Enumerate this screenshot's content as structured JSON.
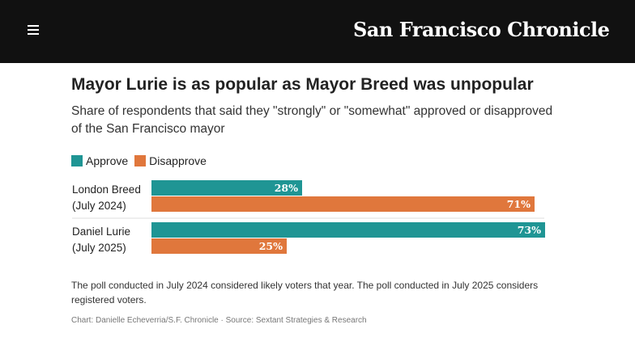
{
  "header": {
    "logo_text": "San Francisco Chronicle",
    "menu_icon": "hamburger-menu-icon"
  },
  "chart_data": {
    "type": "bar",
    "orientation": "horizontal",
    "title": "Mayor Lurie is as popular as Mayor Breed was unpopular",
    "subtitle": "Share of respondents that said they \"strongly\" or \"somewhat\" approved or disapproved of the San Francisco mayor",
    "categories": [
      [
        "London Breed",
        "(July 2024)"
      ],
      [
        "Daniel Lurie",
        "(July 2025)"
      ]
    ],
    "series": [
      {
        "name": "Approve",
        "color": "#1f9594",
        "values": [
          28,
          73
        ]
      },
      {
        "name": "Disapprove",
        "color": "#e0773c",
        "values": [
          71,
          25
        ]
      }
    ],
    "value_suffix": "%",
    "xlim": [
      0,
      100
    ],
    "grid": false,
    "legend_position": "top-left"
  },
  "footnote": "The poll conducted in July 2024 considered likely voters that year. The poll conducted in July 2025 considers registered voters.",
  "credit": "Chart: Danielle Echeverria/S.F. Chronicle · Source: Sextant Strategies & Research"
}
